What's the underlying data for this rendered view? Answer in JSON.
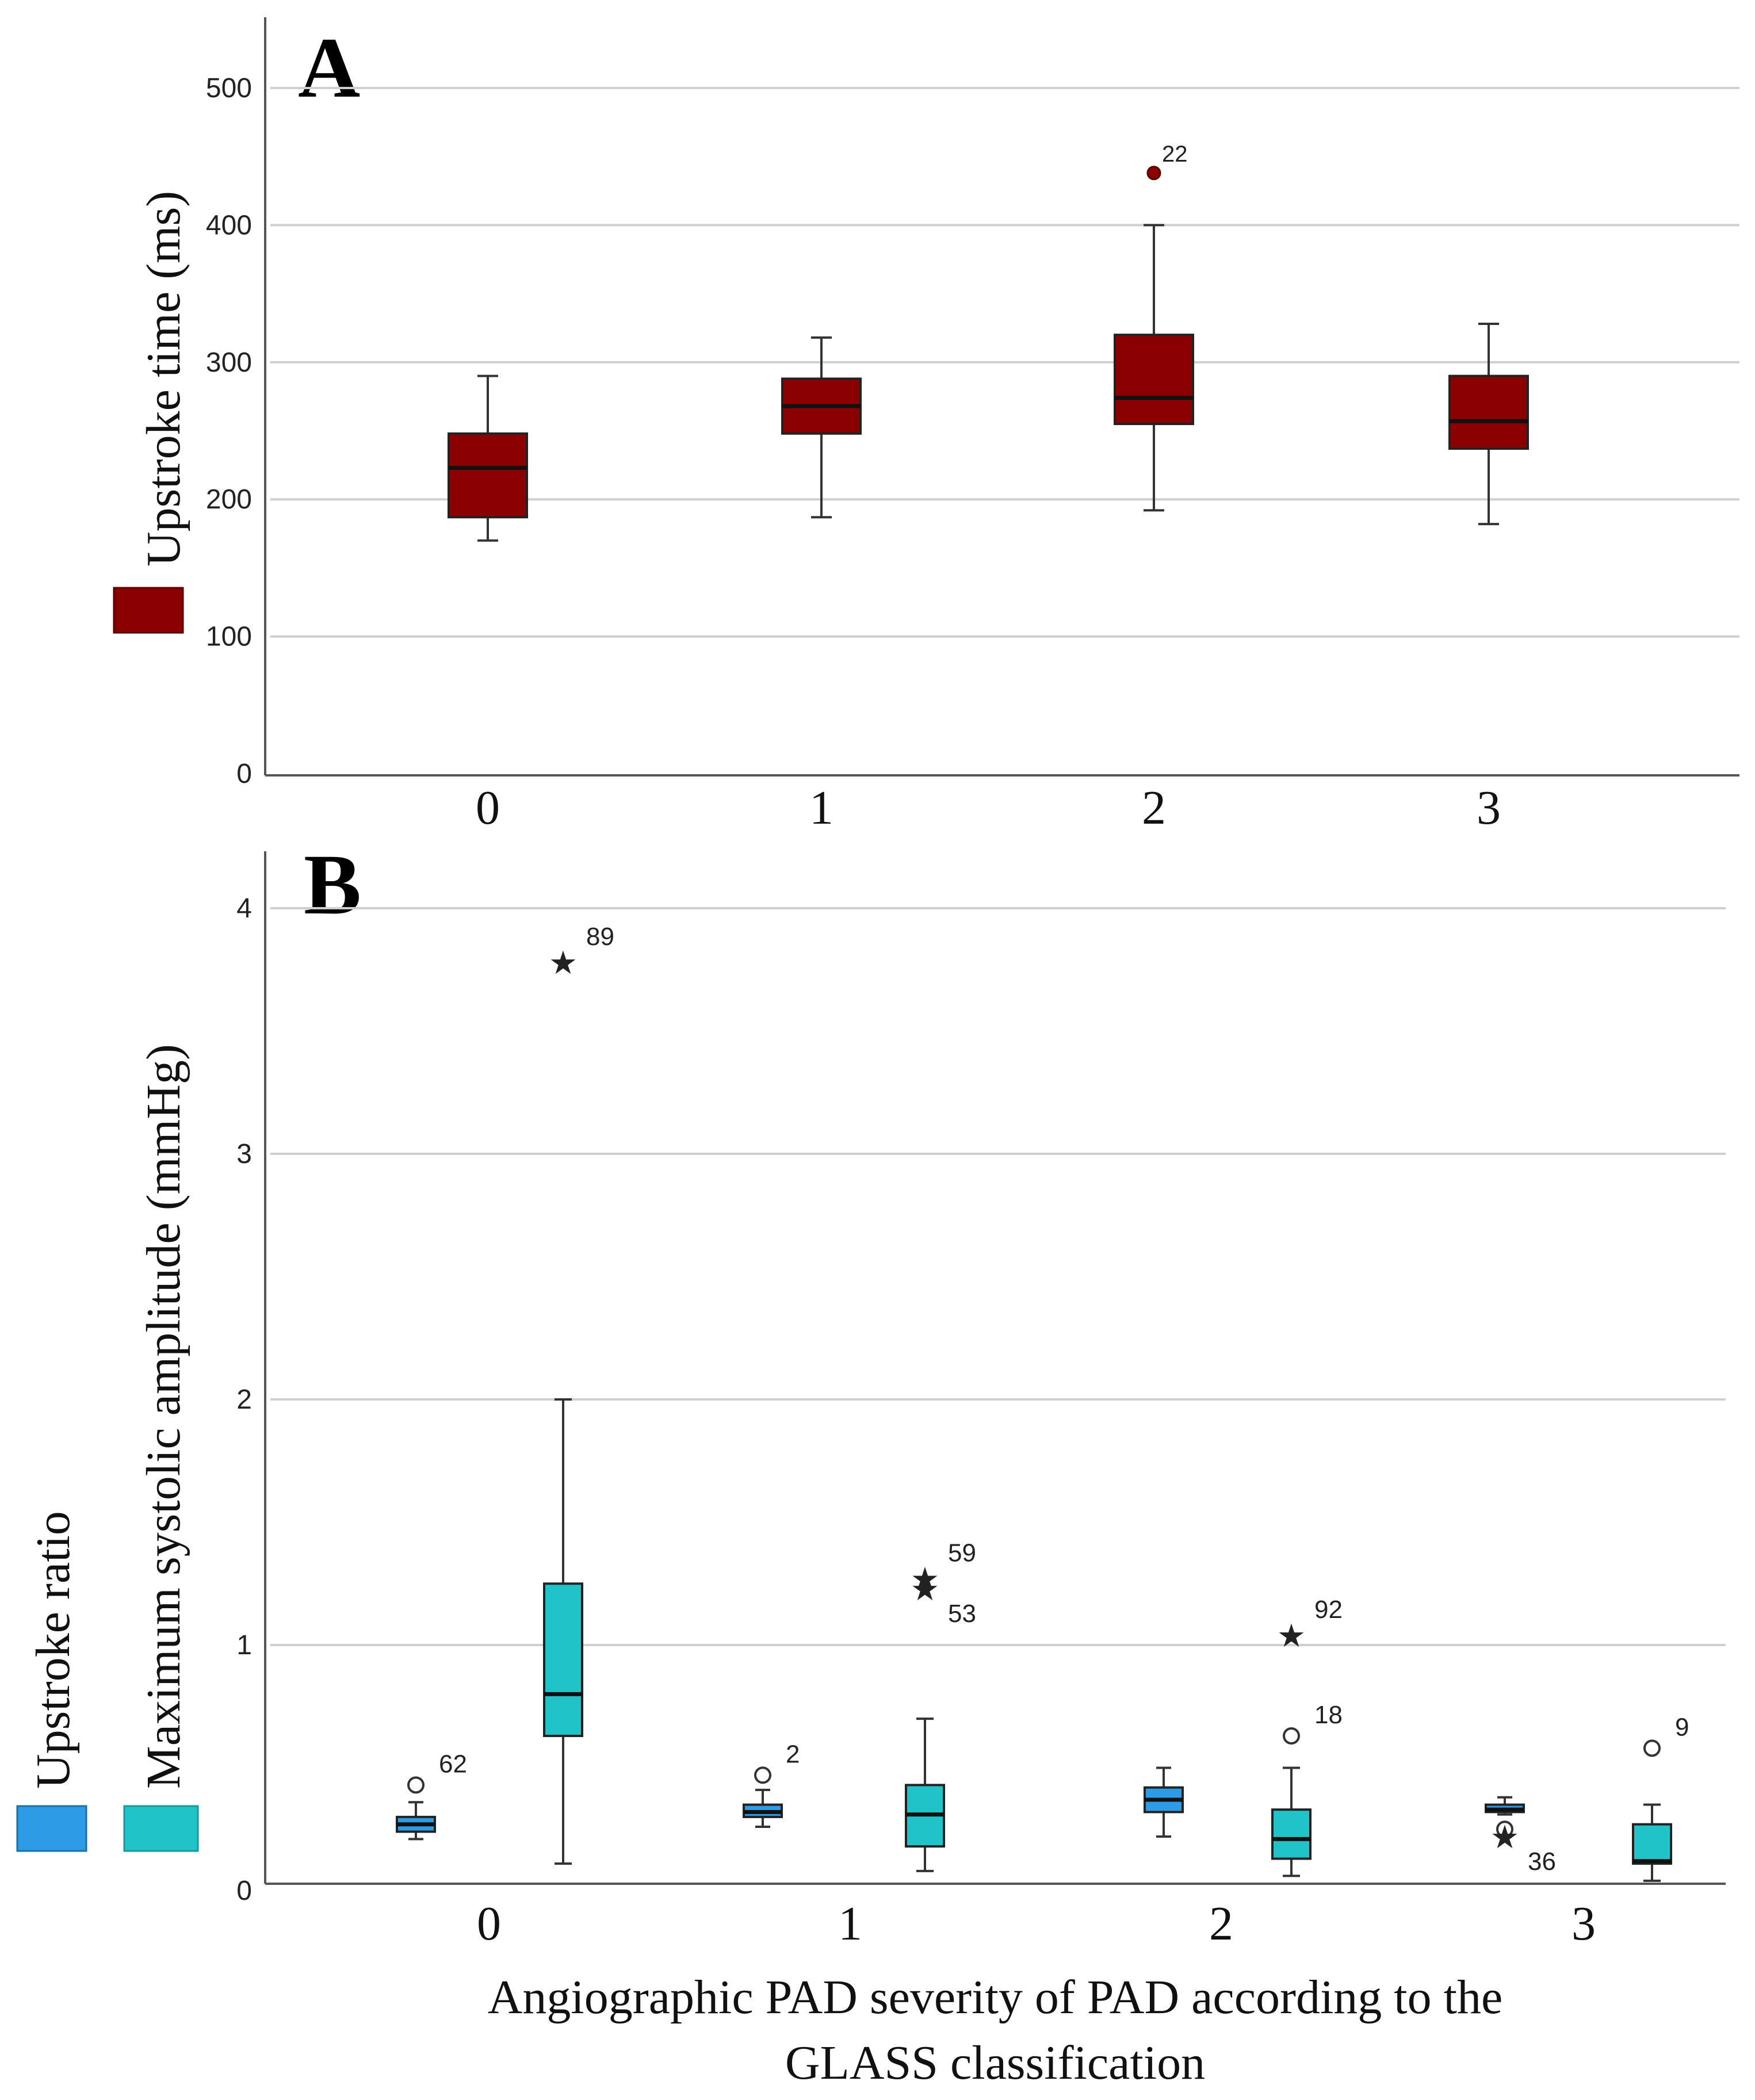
{
  "chart_data": [
    {
      "panel": "A",
      "type": "box",
      "ylabel": "Upstroke time (ms)",
      "legend": [
        {
          "name": "Upstroke time (ms)",
          "color": "#8b0000"
        }
      ],
      "categories": [
        "0",
        "1",
        "2",
        "3"
      ],
      "yticks": [
        "0",
        "100",
        "200",
        "300",
        "400",
        "500"
      ],
      "ylim": [
        0,
        550
      ],
      "series": [
        {
          "name": "Upstroke time",
          "color": "#8b0000",
          "boxes": [
            {
              "category": "0",
              "min": 170,
              "q1": 187,
              "median": 223,
              "q3": 248,
              "max": 290,
              "outliers": []
            },
            {
              "category": "1",
              "min": 187,
              "q1": 248,
              "median": 268,
              "q3": 288,
              "max": 318,
              "outliers": []
            },
            {
              "category": "2",
              "min": 192,
              "q1": 255,
              "median": 274,
              "q3": 320,
              "max": 400,
              "outliers": [
                {
                  "value": 438,
                  "label": "22",
                  "marker": "filled"
                }
              ]
            },
            {
              "category": "3",
              "min": 182,
              "q1": 237,
              "median": 257,
              "q3": 290,
              "max": 328,
              "outliers": []
            }
          ]
        }
      ]
    },
    {
      "panel": "B",
      "type": "box",
      "ylabel": "Maximum systolic amplitude (mmHg)",
      "ylabel2": "Upstroke ratio",
      "xlabel": "Angiographic PAD severity of PAD according to the GLASS classification",
      "xlabel_lines": [
        "Angiographic PAD severity of PAD according to the",
        "GLASS classification"
      ],
      "legend": [
        {
          "name": "Upstroke ratio",
          "color": "#2e9be6"
        },
        {
          "name": "Maximum systolic amplitude (mmHg)",
          "color": "#1fc3c8"
        }
      ],
      "categories": [
        "0",
        "1",
        "2",
        "3"
      ],
      "yticks": [
        "0",
        "1",
        "2",
        "3",
        "4"
      ],
      "ylim": [
        0,
        4.2
      ],
      "series": [
        {
          "name": "Upstroke ratio",
          "color": "#2e9be6",
          "boxes": [
            {
              "category": "0",
              "min": 0.21,
              "q1": 0.24,
              "median": 0.27,
              "q3": 0.3,
              "max": 0.36,
              "outliers": [
                {
                  "value": 0.43,
                  "label": "62",
                  "marker": "circle"
                }
              ]
            },
            {
              "category": "1",
              "min": 0.26,
              "q1": 0.3,
              "median": 0.32,
              "q3": 0.35,
              "max": 0.41,
              "outliers": [
                {
                  "value": 0.47,
                  "label": "2",
                  "marker": "circle"
                }
              ]
            },
            {
              "category": "2",
              "min": 0.22,
              "q1": 0.32,
              "median": 0.37,
              "q3": 0.42,
              "max": 0.5,
              "outliers": []
            },
            {
              "category": "3",
              "min": 0.31,
              "q1": 0.32,
              "median": 0.33,
              "q3": 0.35,
              "max": 0.38,
              "outliers": [
                {
                  "value": 0.25,
                  "label": "",
                  "marker": "circle"
                },
                {
                  "value": 0.22,
                  "label": "36",
                  "marker": "star"
                }
              ]
            }
          ]
        },
        {
          "name": "Maximum systolic amplitude (mmHg)",
          "color": "#1fc3c8",
          "boxes": [
            {
              "category": "0",
              "min": 0.11,
              "q1": 0.63,
              "median": 0.8,
              "q3": 1.25,
              "max": 2.0,
              "outliers": [
                {
                  "value": 3.78,
                  "label": "89",
                  "marker": "star"
                }
              ]
            },
            {
              "category": "1",
              "min": 0.08,
              "q1": 0.18,
              "median": 0.31,
              "q3": 0.43,
              "max": 0.7,
              "outliers": [
                {
                  "value": 1.27,
                  "label": "59",
                  "marker": "star"
                },
                {
                  "value": 1.23,
                  "label": "53",
                  "marker": "star"
                }
              ]
            },
            {
              "category": "2",
              "min": 0.06,
              "q1": 0.13,
              "median": 0.21,
              "q3": 0.33,
              "max": 0.5,
              "outliers": [
                {
                  "value": 1.04,
                  "label": "92",
                  "marker": "star"
                },
                {
                  "value": 0.63,
                  "label": "18",
                  "marker": "circle"
                }
              ]
            },
            {
              "category": "3",
              "min": 0.04,
              "q1": 0.11,
              "median": 0.12,
              "q3": 0.27,
              "max": 0.35,
              "outliers": [
                {
                  "value": 0.58,
                  "label": "9",
                  "marker": "circle"
                }
              ]
            }
          ]
        }
      ]
    }
  ]
}
